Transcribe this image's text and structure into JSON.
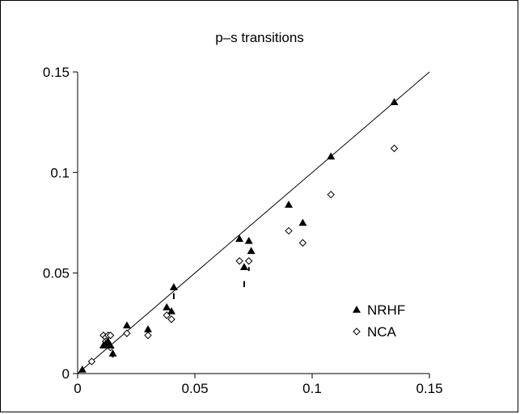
{
  "chart_data": {
    "type": "scatter",
    "title": "p–s transitions",
    "xlabel": "",
    "ylabel": "",
    "xlim": [
      0,
      0.15
    ],
    "ylim": [
      0,
      0.15
    ],
    "x_ticks": [
      "0",
      "0.05",
      "0.1",
      "0.15"
    ],
    "y_ticks": [
      "0",
      "0.05",
      "0.1",
      "0.15"
    ],
    "grid": false,
    "legend_position": "right",
    "reference_line": {
      "x": [
        0,
        0.15
      ],
      "y": [
        0,
        0.15
      ]
    },
    "series": [
      {
        "name": "NRHF",
        "marker": "filled-triangle",
        "color": "#000000",
        "points": [
          [
            0.002,
            0.002
          ],
          [
            0.011,
            0.014
          ],
          [
            0.012,
            0.015
          ],
          [
            0.013,
            0.016
          ],
          [
            0.014,
            0.014
          ],
          [
            0.015,
            0.01
          ],
          [
            0.021,
            0.024
          ],
          [
            0.03,
            0.022
          ],
          [
            0.038,
            0.033
          ],
          [
            0.04,
            0.031
          ],
          [
            0.041,
            0.043
          ],
          [
            0.069,
            0.067
          ],
          [
            0.071,
            0.053
          ],
          [
            0.073,
            0.066
          ],
          [
            0.074,
            0.061
          ],
          [
            0.09,
            0.084
          ],
          [
            0.096,
            0.075
          ],
          [
            0.108,
            0.108
          ],
          [
            0.135,
            0.135
          ]
        ]
      },
      {
        "name": "NCA",
        "marker": "open-diamond",
        "color": "#000000",
        "points": [
          [
            0.006,
            0.006
          ],
          [
            0.011,
            0.019
          ],
          [
            0.012,
            0.018
          ],
          [
            0.013,
            0.019
          ],
          [
            0.014,
            0.019
          ],
          [
            0.012,
            0.016
          ],
          [
            0.013,
            0.014
          ],
          [
            0.014,
            0.013
          ],
          [
            0.021,
            0.02
          ],
          [
            0.03,
            0.019
          ],
          [
            0.038,
            0.029
          ],
          [
            0.04,
            0.027
          ],
          [
            0.069,
            0.056
          ],
          [
            0.073,
            0.056
          ],
          [
            0.09,
            0.071
          ],
          [
            0.096,
            0.065
          ],
          [
            0.108,
            0.089
          ],
          [
            0.135,
            0.112
          ]
        ]
      }
    ],
    "error_ticks": [
      [
        0.015,
        0.008,
        0.01
      ],
      [
        0.041,
        0.037,
        0.04
      ],
      [
        0.071,
        0.043,
        0.046
      ],
      [
        0.073,
        0.051,
        0.053
      ]
    ]
  }
}
